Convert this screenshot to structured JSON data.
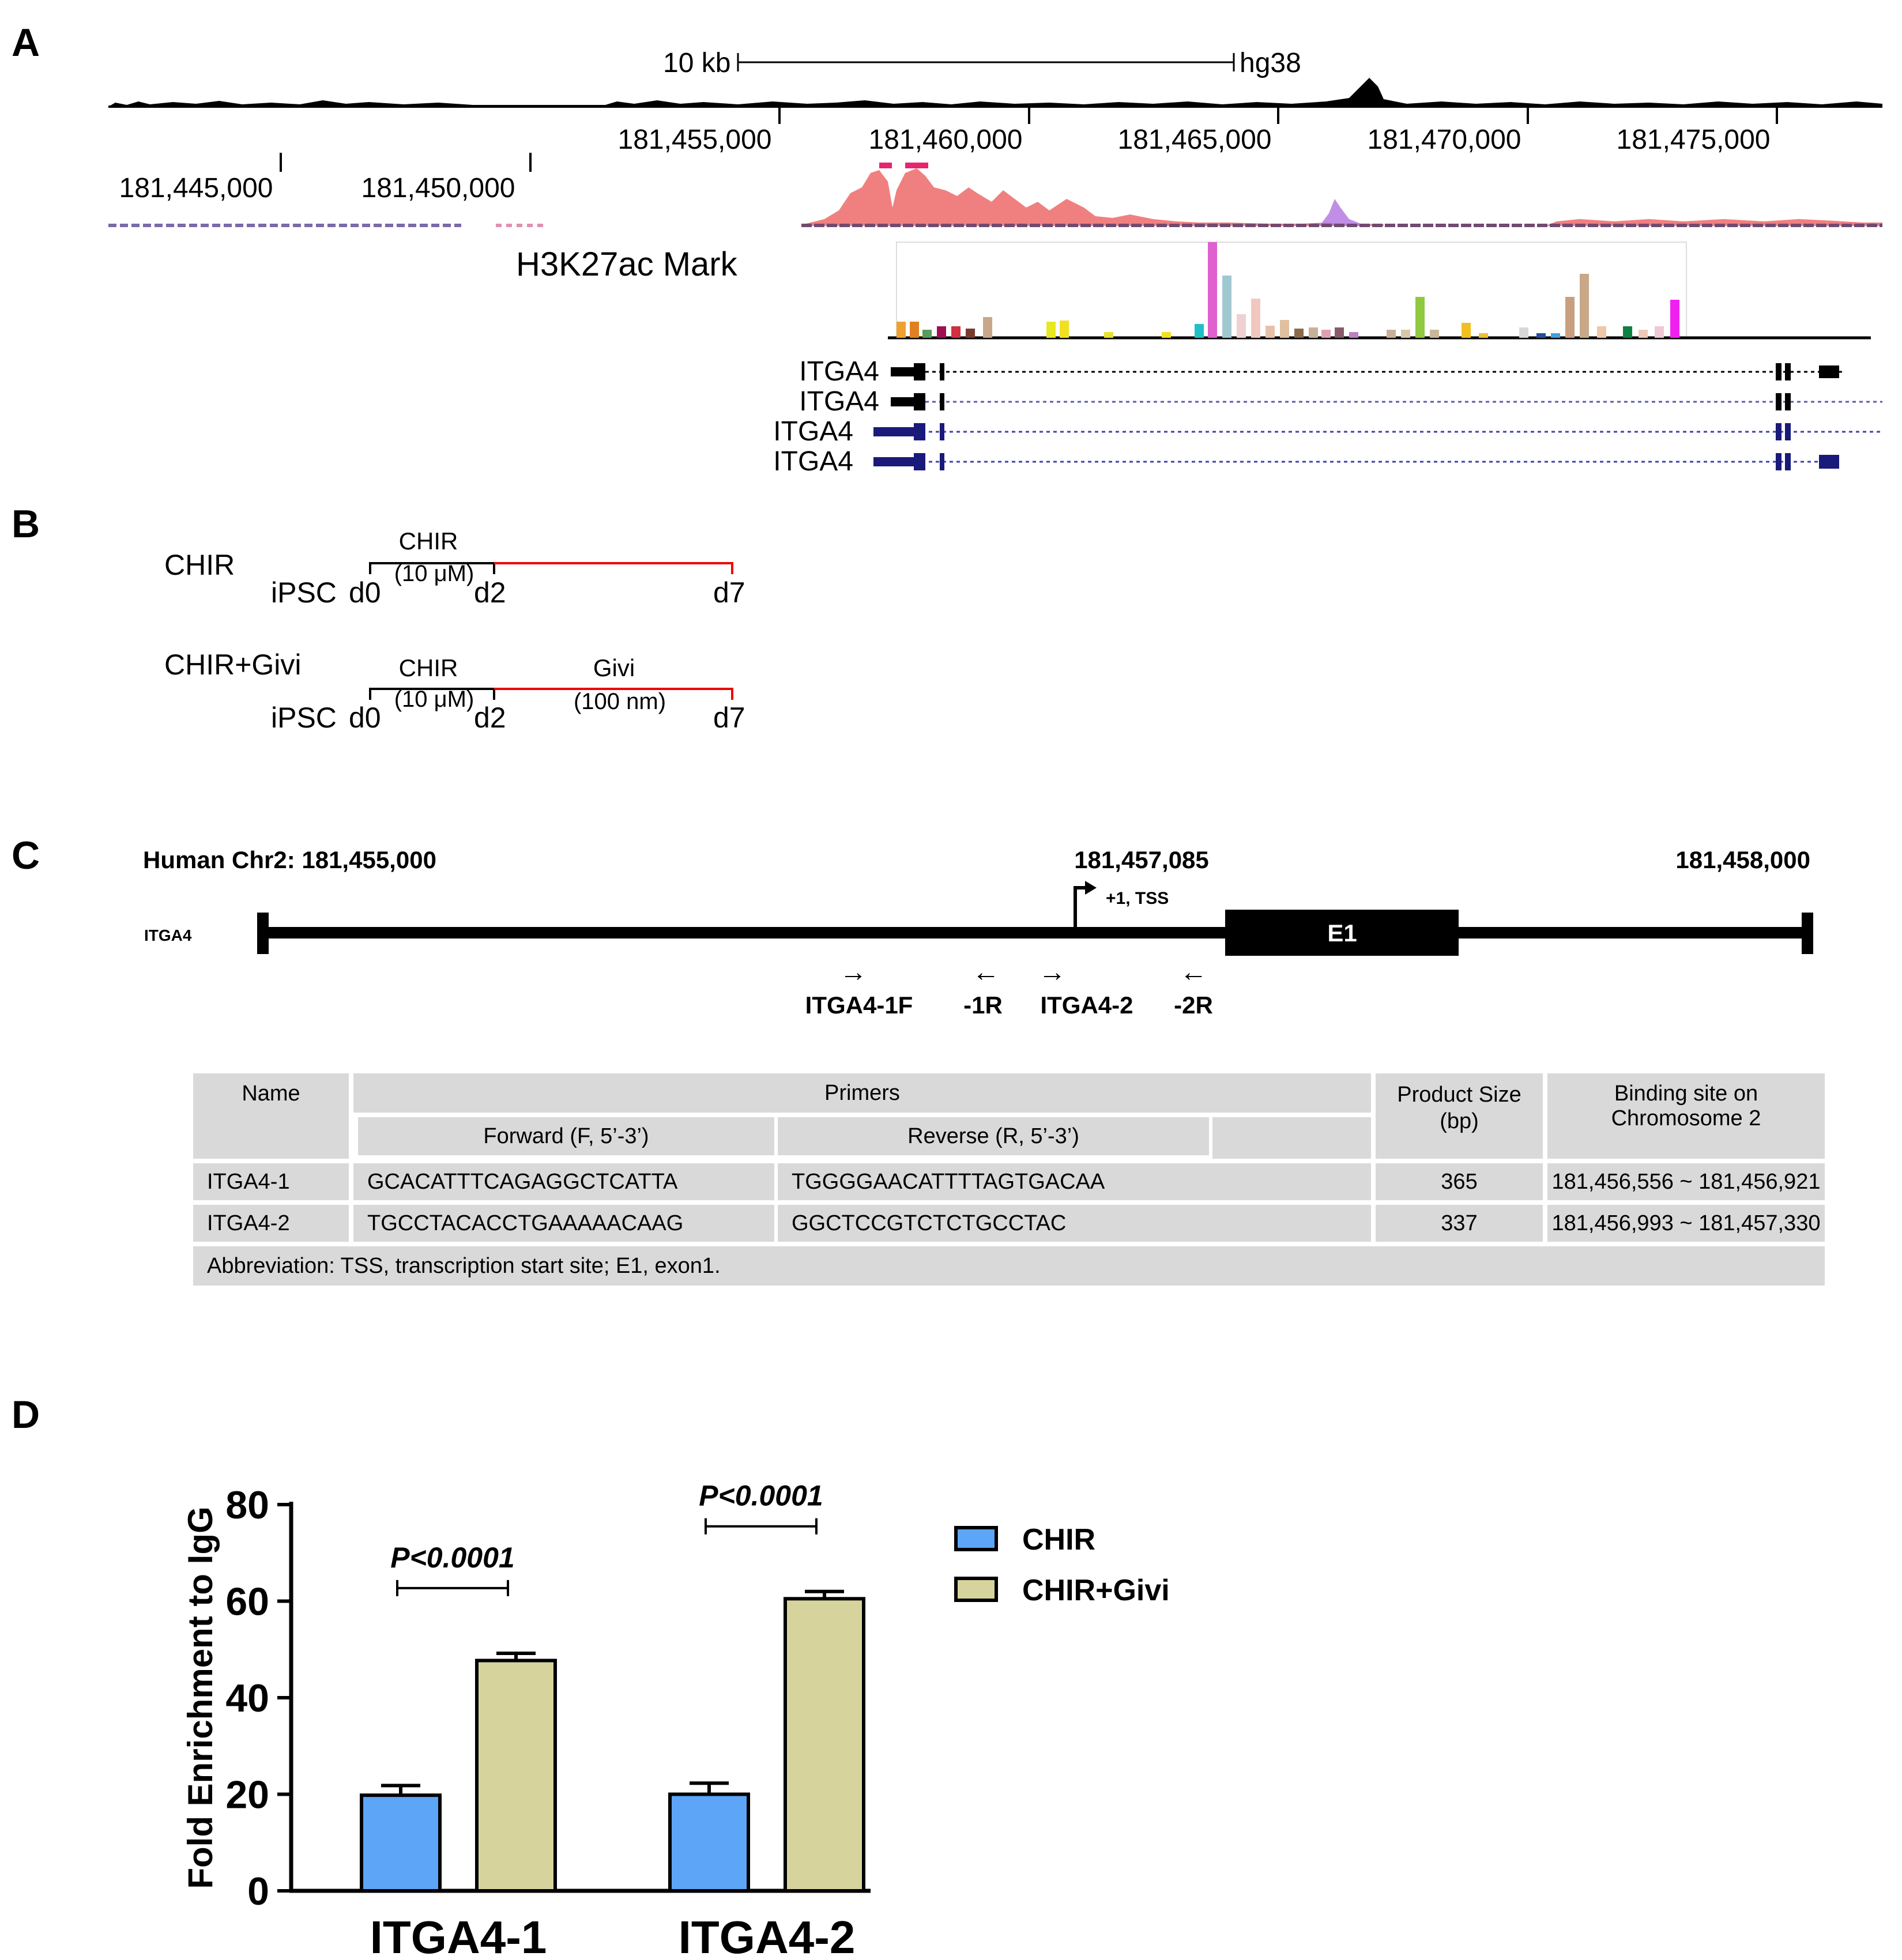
{
  "panels": {
    "A": "A",
    "B": "B",
    "C": "C",
    "D": "D"
  },
  "panelA": {
    "scale_label": "10 kb",
    "assembly": "hg38",
    "coords_top": [
      "181,455,000",
      "181,460,000",
      "181,465,000",
      "181,470,000",
      "181,475,000"
    ],
    "coords_bottom": [
      "181,445,000",
      "181,450,000"
    ],
    "track_label": "H3K27ac Mark",
    "genes": [
      "ITGA4",
      "ITGA4",
      "ITGA4",
      "ITGA4"
    ],
    "colors": {
      "peak": "#f08080",
      "gene_black": "#000000",
      "gene_blue": "#1a1a7a"
    }
  },
  "panelB": {
    "groups": [
      {
        "name": "CHIR",
        "drug1": "CHIR",
        "drug1_conc": "(10 μM)",
        "start": "iPSC",
        "d0": "d0",
        "d2": "d2",
        "d7": "d7"
      },
      {
        "name": "CHIR+Givi",
        "drug1": "CHIR",
        "drug1_conc": "(10 μM)",
        "drug2": "Givi",
        "drug2_conc": "(100 nm)",
        "start": "iPSC",
        "d0": "d0",
        "d2": "d2",
        "d7": "d7"
      }
    ]
  },
  "panelC": {
    "header_left": "Human Chr2: 181,455,000",
    "header_mid": "181,457,085",
    "header_right": "181,458,000",
    "tss_label": "+1, TSS",
    "gene_label": "ITGA4",
    "exon_label": "E1",
    "primers": [
      "ITGA4-1F",
      "-1R",
      "ITGA4-2",
      "-2R"
    ],
    "table": {
      "h_name": "Name",
      "h_primers": "Primers",
      "h_forward": "Forward (F, 5’-3’)",
      "h_reverse": "Reverse (R, 5’-3’)",
      "h_size": "Product Size (bp)",
      "h_binding": "Binding site on Chromosome 2",
      "rows": [
        {
          "name": "ITGA4-1",
          "forward": "GCACATTTCAGAGGCTCATTA",
          "reverse": "TGGGGAACATTTTAGTGACAA",
          "size": "365",
          "binding": "181,456,556 ~ 181,456,921"
        },
        {
          "name": "ITGA4-2",
          "forward": "TGCCTACACCTGAAAAACAAG",
          "reverse": "GGCTCCGTCTCTGCCTAC",
          "size": "337",
          "binding": "181,456,993 ~ 181,457,330"
        }
      ],
      "footnote": "Abbreviation: TSS, transcription start site; E1, exon1."
    }
  },
  "chart_data": {
    "type": "bar",
    "categories": [
      "ITGA4-1",
      "ITGA4-2"
    ],
    "series": [
      {
        "name": "CHIR",
        "color": "#5ca5f7",
        "values": [
          19.8,
          20.0
        ],
        "errors": [
          2.0,
          2.3
        ]
      },
      {
        "name": "CHIR+Givi",
        "color": "#d6d49c",
        "values": [
          47.7,
          60.5
        ],
        "errors": [
          1.5,
          1.5
        ]
      }
    ],
    "ylabel": "Fold Enrichment to IgG",
    "ylim": [
      0,
      80
    ],
    "yticks": [
      0,
      20,
      40,
      60,
      80
    ],
    "annotations": [
      "P<0.0001",
      "P<0.0001"
    ],
    "legend_position": "top-right"
  }
}
